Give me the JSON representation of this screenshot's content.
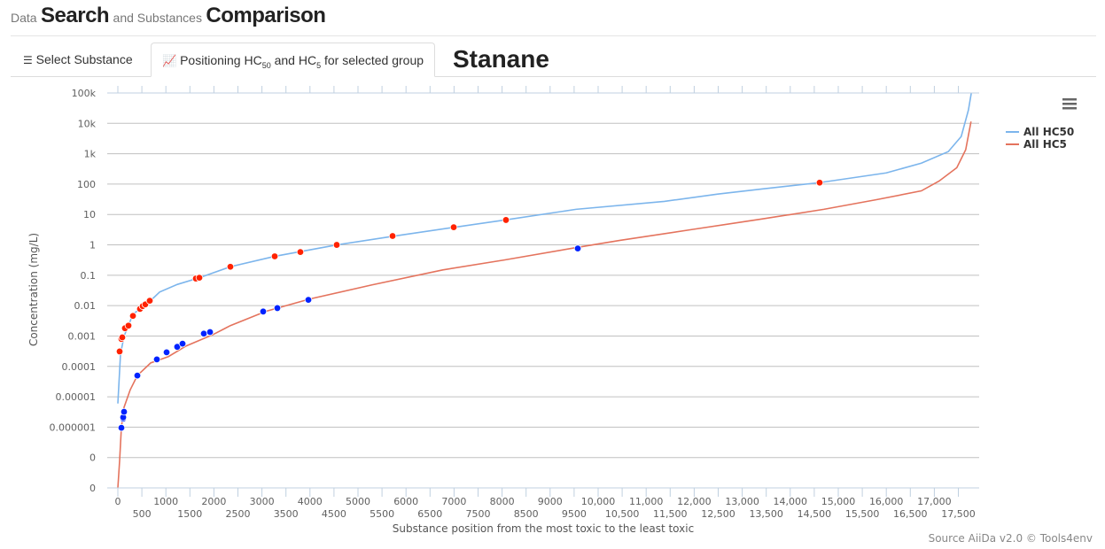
{
  "header": {
    "pre": "Data",
    "search": "Search",
    "mid": "and Substances",
    "comparison": "Comparison"
  },
  "tabs": [
    {
      "label": "Select Substance",
      "icon": "list-icon"
    },
    {
      "label_a": "Positioning HC",
      "sub_a": "50",
      "label_b": " and HC",
      "sub_b": "5",
      "label_c": " for selected group",
      "icon": "chart-icon"
    }
  ],
  "substance": "Stanane",
  "credits": "Source AiiDa v2.0 © Tools4env",
  "chart_data": {
    "type": "line",
    "xlabel": "Substance position from the most toxic to the least toxic",
    "ylabel": "Concentration (mg/L)",
    "y_scale": "log",
    "ylim": [
      1e-08,
      100000
    ],
    "xlim": [
      0,
      17800
    ],
    "ytick_labels": [
      "100k",
      "10k",
      "1k",
      "100",
      "10",
      "1",
      "0.1",
      "0.01",
      "0.001",
      "0.0001",
      "0.00001",
      "0.000001",
      "0",
      "0"
    ],
    "xtick_labels": [
      "0",
      "500",
      "1000",
      "1500",
      "2000",
      "2500",
      "3000",
      "3500",
      "4000",
      "4500",
      "5000",
      "5500",
      "6000",
      "6500",
      "7000",
      "7500",
      "8000",
      "8500",
      "9000",
      "9500",
      "10,000",
      "10,500",
      "11,000",
      "11,500",
      "12,000",
      "12,500",
      "13,000",
      "13,500",
      "14,000",
      "14,500",
      "15,000",
      "15,500",
      "16,000",
      "16,500",
      "17,000",
      "17,500"
    ],
    "legend_position": "right",
    "series": [
      {
        "name": "All HC50",
        "color": "#7cb5ec",
        "points": [
          [
            0,
            6e-06
          ],
          [
            55,
            0.00025
          ],
          [
            130,
            0.001
          ],
          [
            315,
            0.0052
          ],
          [
            680,
            0.0145
          ],
          [
            870,
            0.028
          ],
          [
            1240,
            0.05
          ],
          [
            1700,
            0.083
          ],
          [
            2340,
            0.19
          ],
          [
            3270,
            0.42
          ],
          [
            4560,
            1
          ],
          [
            5760,
            1.95
          ],
          [
            7010,
            3.8
          ],
          [
            8060,
            6.6
          ],
          [
            9540,
            14.8
          ],
          [
            11380,
            27
          ],
          [
            12490,
            47
          ],
          [
            13410,
            69
          ],
          [
            14610,
            112
          ],
          [
            16000,
            234
          ],
          [
            16730,
            490
          ],
          [
            17290,
            1175
          ],
          [
            17560,
            3700
          ],
          [
            17710,
            27500
          ],
          [
            17770,
            100000
          ]
        ]
      },
      {
        "name": "All HC5",
        "color": "#e4735d",
        "points": [
          [
            0,
            1e-08
          ],
          [
            37,
            8e-08
          ],
          [
            74,
            1e-06
          ],
          [
            129,
            4.5e-06
          ],
          [
            258,
            1.7e-05
          ],
          [
            406,
            5e-05
          ],
          [
            683,
            0.00013
          ],
          [
            1052,
            0.00021
          ],
          [
            1421,
            0.00047
          ],
          [
            1974,
            0.0011
          ],
          [
            2343,
            0.0022
          ],
          [
            3081,
            0.0065
          ],
          [
            3999,
            0.0166
          ],
          [
            5290,
            0.048
          ],
          [
            6766,
            0.15
          ],
          [
            8058,
            0.32
          ],
          [
            9534,
            0.81
          ],
          [
            10456,
            1.41
          ],
          [
            11932,
            3.16
          ],
          [
            13408,
            7.1
          ],
          [
            14700,
            14.8
          ],
          [
            15807,
            31
          ],
          [
            16730,
            60
          ],
          [
            17099,
            126
          ],
          [
            17468,
            347
          ],
          [
            17653,
            1350
          ],
          [
            17764,
            11500
          ]
        ]
      }
    ],
    "highlight_hc50": {
      "color": "#ff2200",
      "points": [
        [
          37,
          0.00031
        ],
        [
          74,
          0.0008
        ],
        [
          92,
          0.0009
        ],
        [
          148,
          0.0018
        ],
        [
          221,
          0.0022
        ],
        [
          314,
          0.0046
        ],
        [
          461,
          0.0078
        ],
        [
          517,
          0.0096
        ],
        [
          572,
          0.011
        ],
        [
          664,
          0.0145
        ],
        [
          1624,
          0.078
        ],
        [
          1697,
          0.083
        ],
        [
          2343,
          0.19
        ],
        [
          3266,
          0.42
        ],
        [
          3800,
          0.58
        ],
        [
          4557,
          1.0
        ],
        [
          5720,
          1.96
        ],
        [
          6993,
          3.8
        ],
        [
          8081,
          6.6
        ],
        [
          14612,
          112
        ]
      ]
    },
    "highlight_hc5": {
      "color": "#0022ff",
      "points": [
        [
          74,
          9.5e-07
        ],
        [
          111,
          1.9e-06
        ],
        [
          111,
          2.1e-06
        ],
        [
          129,
          3.2e-06
        ],
        [
          406,
          5e-05
        ],
        [
          812,
          0.00017
        ],
        [
          1015,
          0.00029
        ],
        [
          1236,
          0.00044
        ],
        [
          1347,
          0.00056
        ],
        [
          1790,
          0.0012
        ],
        [
          1919,
          0.00135
        ],
        [
          3026,
          0.0064
        ],
        [
          3321,
          0.0083
        ],
        [
          3967,
          0.0155
        ],
        [
          9576,
          0.76
        ]
      ]
    }
  }
}
